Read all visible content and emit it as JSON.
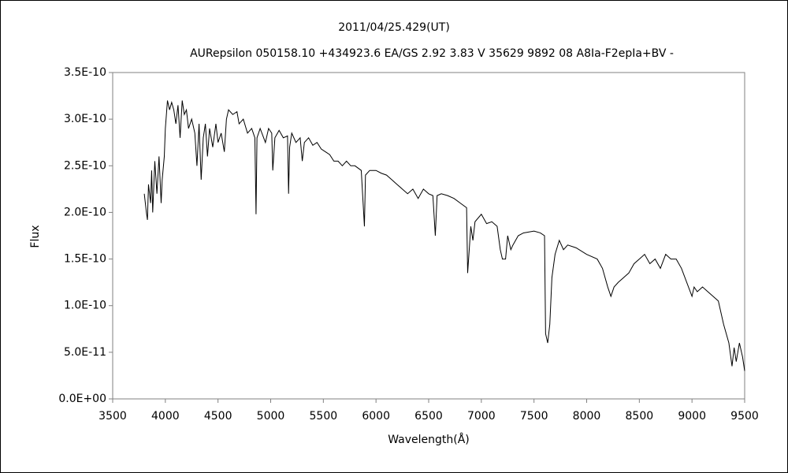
{
  "chart_data": {
    "type": "line",
    "title": "2011/04/25.429(UT)",
    "subtitle": "AURepsilon 050158.10 +434923.6 EA/GS 2.92 3.83 V 35629 9892 08 A8Ia-F2epIa+BV -",
    "x_label": "Wavelength(Å)",
    "y_label": "Flux",
    "color": "#000000",
    "grid": false,
    "xlim": [
      3500,
      9500
    ],
    "xticks": [
      3500,
      4000,
      4500,
      5000,
      5500,
      6000,
      6500,
      7000,
      7500,
      8000,
      8500,
      9000,
      9500
    ],
    "ylim": [
      0,
      3.5e-10
    ],
    "yticks": [
      {
        "value": 0,
        "label": "0.0E+00"
      },
      {
        "value": 5e-11,
        "label": "5.0E-11"
      },
      {
        "value": 1e-10,
        "label": "1.0E-10"
      },
      {
        "value": 1.5e-10,
        "label": "1.5E-10"
      },
      {
        "value": 2e-10,
        "label": "2.0E-10"
      },
      {
        "value": 2.5e-10,
        "label": "2.5E-10"
      },
      {
        "value": 3e-10,
        "label": "3.0E-10"
      },
      {
        "value": 3.5e-10,
        "label": "3.5E-10"
      }
    ],
    "x": [
      3800,
      3820,
      3830,
      3840,
      3860,
      3870,
      3880,
      3900,
      3920,
      3940,
      3960,
      3970,
      3990,
      4000,
      4020,
      4040,
      4060,
      4080,
      4100,
      4120,
      4140,
      4160,
      4180,
      4200,
      4220,
      4250,
      4280,
      4300,
      4320,
      4340,
      4360,
      4380,
      4400,
      4420,
      4450,
      4480,
      4500,
      4530,
      4560,
      4580,
      4600,
      4640,
      4680,
      4700,
      4740,
      4780,
      4820,
      4850,
      4861,
      4870,
      4900,
      4950,
      4980,
      5010,
      5020,
      5040,
      5080,
      5120,
      5160,
      5170,
      5180,
      5200,
      5240,
      5280,
      5300,
      5320,
      5360,
      5400,
      5440,
      5480,
      5520,
      5560,
      5600,
      5640,
      5680,
      5720,
      5760,
      5800,
      5860,
      5890,
      5900,
      5940,
      6000,
      6050,
      6100,
      6150,
      6200,
      6250,
      6300,
      6350,
      6400,
      6450,
      6500,
      6540,
      6563,
      6580,
      6620,
      6680,
      6740,
      6800,
      6860,
      6870,
      6900,
      6920,
      6940,
      7000,
      7050,
      7100,
      7150,
      7180,
      7200,
      7230,
      7250,
      7280,
      7300,
      7350,
      7400,
      7500,
      7560,
      7600,
      7610,
      7630,
      7650,
      7670,
      7700,
      7740,
      7780,
      7820,
      7900,
      8000,
      8100,
      8150,
      8200,
      8230,
      8260,
      8300,
      8350,
      8400,
      8450,
      8500,
      8550,
      8600,
      8650,
      8700,
      8750,
      8800,
      8850,
      8900,
      8950,
      9000,
      9020,
      9050,
      9100,
      9150,
      9200,
      9250,
      9300,
      9350,
      9380,
      9400,
      9420,
      9450,
      9480,
      9500
    ],
    "values": [
      2.2e-10,
      2e-10,
      1.92e-10,
      2.3e-10,
      2.1e-10,
      2.45e-10,
      2e-10,
      2.55e-10,
      2.2e-10,
      2.6e-10,
      2.1e-10,
      2.35e-10,
      2.6e-10,
      2.9e-10,
      3.2e-10,
      3.1e-10,
      3.18e-10,
      3.1e-10,
      2.95e-10,
      3.15e-10,
      2.8e-10,
      3.2e-10,
      3.05e-10,
      3.1e-10,
      2.9e-10,
      3e-10,
      2.85e-10,
      2.5e-10,
      2.95e-10,
      2.35e-10,
      2.8e-10,
      2.95e-10,
      2.6e-10,
      2.9e-10,
      2.7e-10,
      2.95e-10,
      2.75e-10,
      2.85e-10,
      2.65e-10,
      3e-10,
      3.1e-10,
      3.05e-10,
      3.08e-10,
      2.95e-10,
      3e-10,
      2.85e-10,
      2.9e-10,
      2.8e-10,
      1.98e-10,
      2.8e-10,
      2.9e-10,
      2.75e-10,
      2.9e-10,
      2.85e-10,
      2.45e-10,
      2.8e-10,
      2.88e-10,
      2.8e-10,
      2.82e-10,
      2.2e-10,
      2.7e-10,
      2.85e-10,
      2.75e-10,
      2.8e-10,
      2.55e-10,
      2.75e-10,
      2.8e-10,
      2.72e-10,
      2.75e-10,
      2.68e-10,
      2.65e-10,
      2.62e-10,
      2.55e-10,
      2.55e-10,
      2.5e-10,
      2.55e-10,
      2.5e-10,
      2.5e-10,
      2.45e-10,
      1.85e-10,
      2.4e-10,
      2.45e-10,
      2.45e-10,
      2.42e-10,
      2.4e-10,
      2.35e-10,
      2.3e-10,
      2.25e-10,
      2.2e-10,
      2.25e-10,
      2.15e-10,
      2.25e-10,
      2.2e-10,
      2.18e-10,
      1.75e-10,
      2.18e-10,
      2.2e-10,
      2.18e-10,
      2.15e-10,
      2.1e-10,
      2.05e-10,
      1.35e-10,
      1.85e-10,
      1.7e-10,
      1.9e-10,
      1.98e-10,
      1.88e-10,
      1.9e-10,
      1.85e-10,
      1.6e-10,
      1.5e-10,
      1.5e-10,
      1.75e-10,
      1.6e-10,
      1.65e-10,
      1.75e-10,
      1.78e-10,
      1.8e-10,
      1.78e-10,
      1.75e-10,
      7e-11,
      6e-11,
      8e-11,
      1.3e-10,
      1.55e-10,
      1.7e-10,
      1.6e-10,
      1.65e-10,
      1.62e-10,
      1.55e-10,
      1.5e-10,
      1.4e-10,
      1.2e-10,
      1.1e-10,
      1.2e-10,
      1.25e-10,
      1.3e-10,
      1.35e-10,
      1.45e-10,
      1.5e-10,
      1.55e-10,
      1.45e-10,
      1.5e-10,
      1.4e-10,
      1.55e-10,
      1.5e-10,
      1.5e-10,
      1.4e-10,
      1.25e-10,
      1.1e-10,
      1.2e-10,
      1.15e-10,
      1.2e-10,
      1.15e-10,
      1.1e-10,
      1.05e-10,
      8e-11,
      6e-11,
      3.5e-11,
      5.5e-11,
      4e-11,
      6e-11,
      4.5e-11,
      3e-11
    ]
  }
}
